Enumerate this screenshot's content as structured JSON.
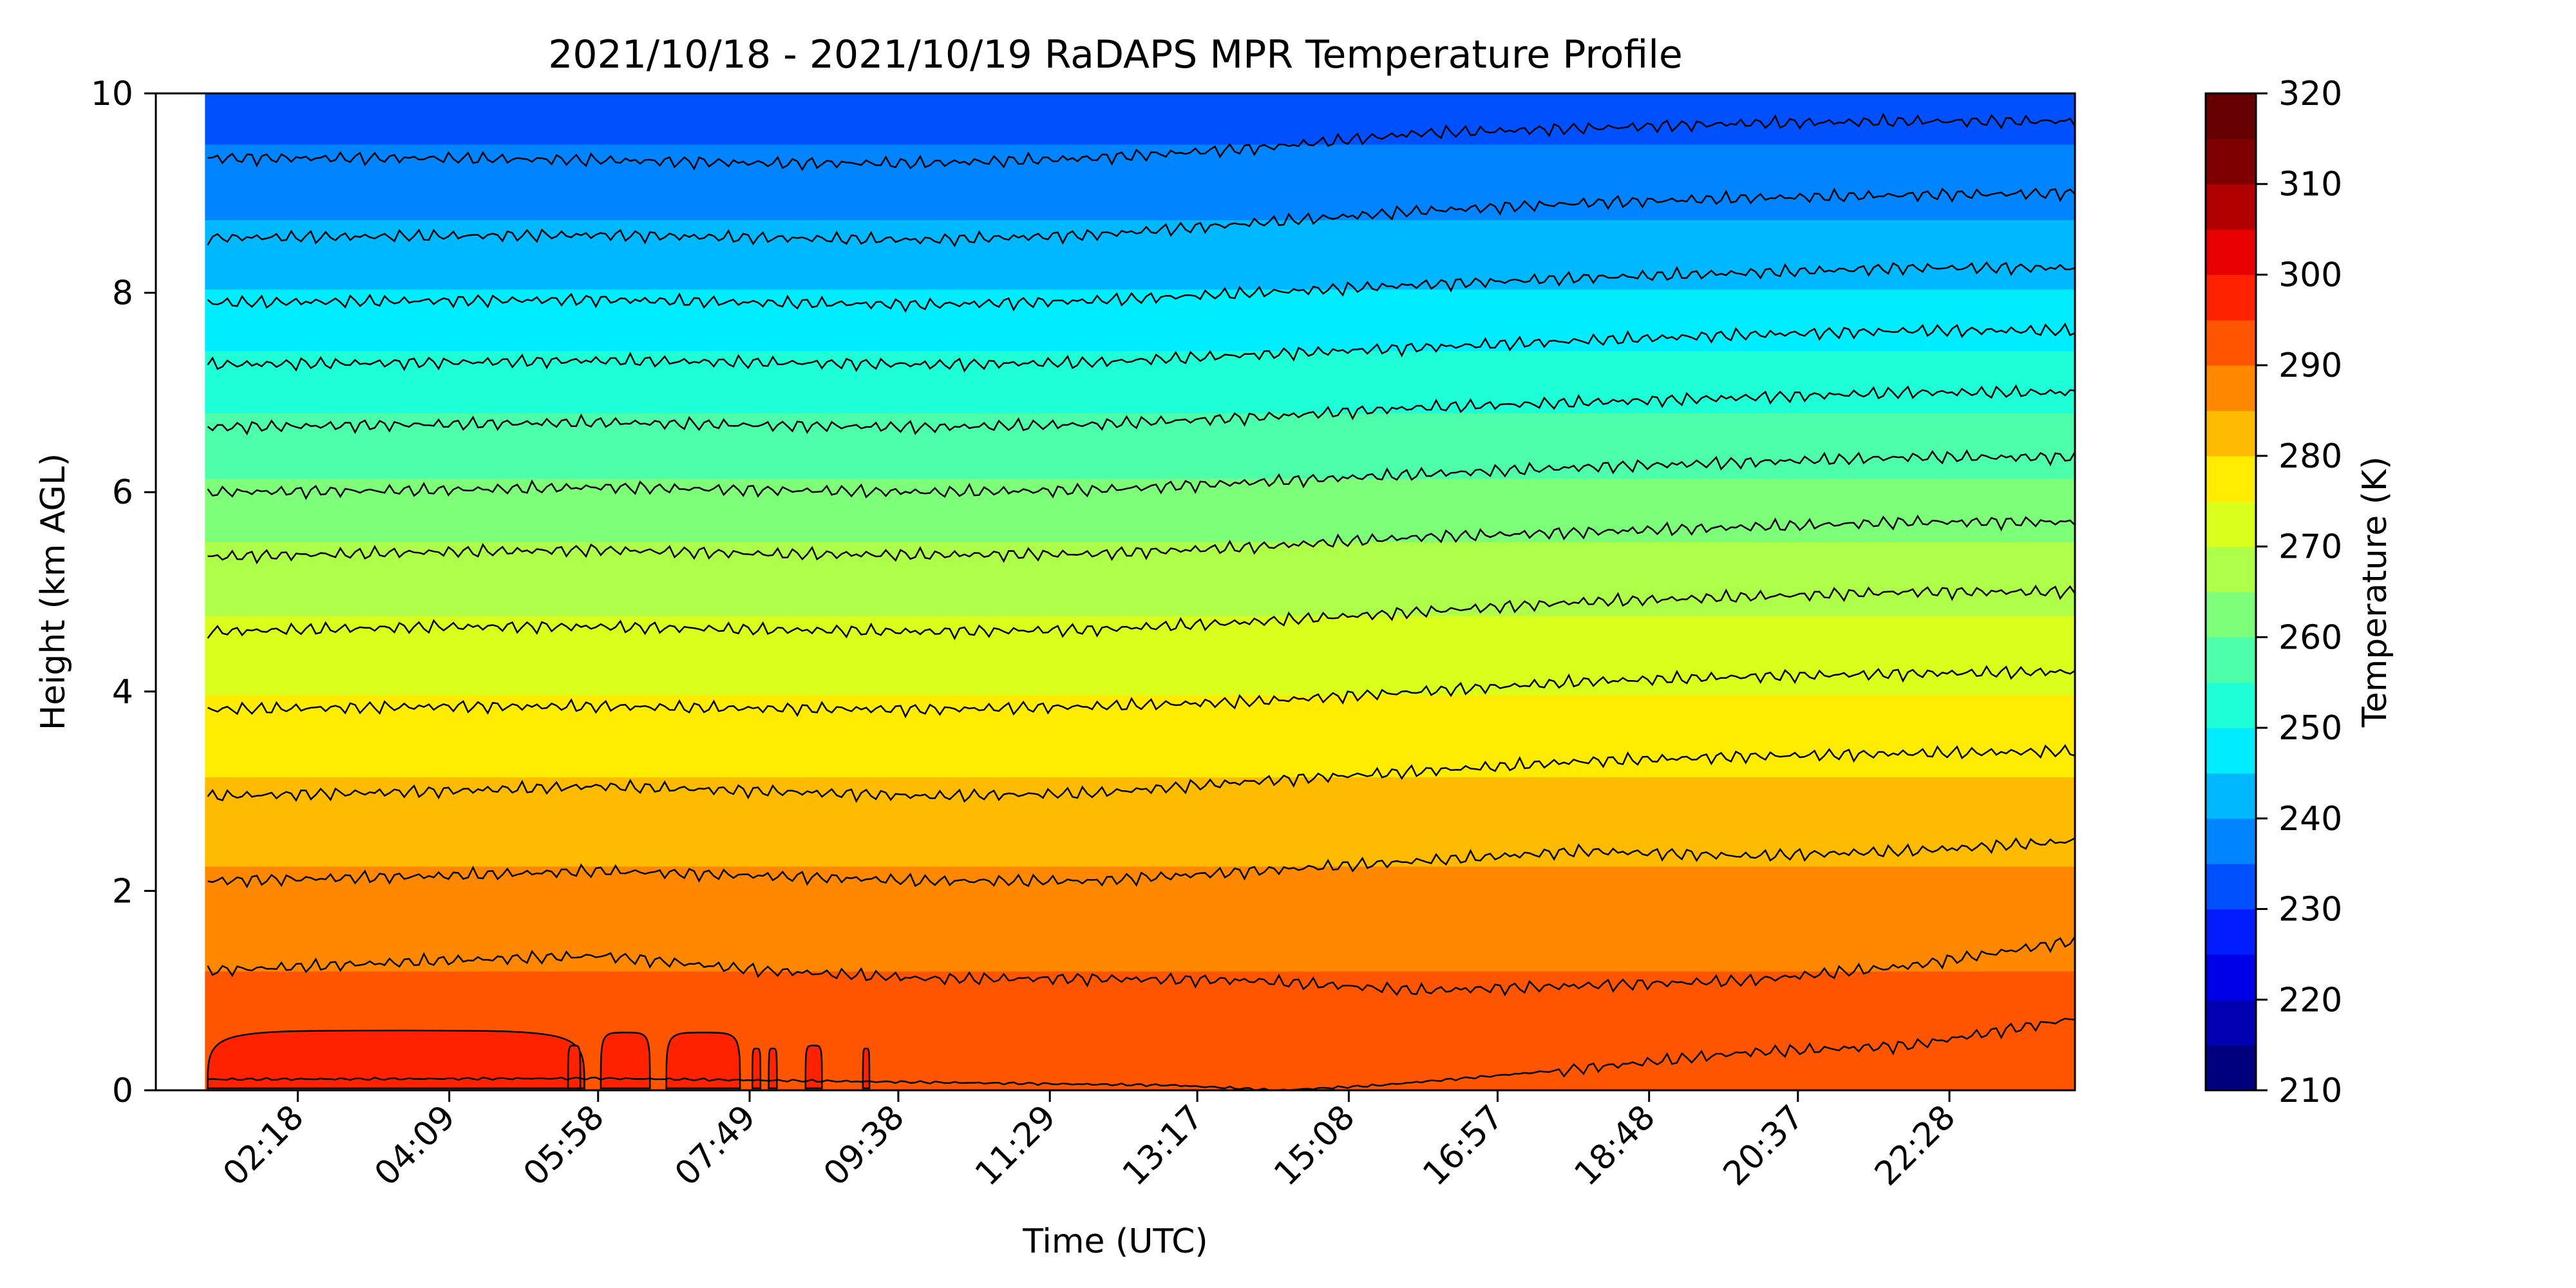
{
  "chart_data": {
    "type": "heatmap",
    "subtype": "filled-contour",
    "title": "2021/10/18 - 2021/10/19 RaDAPS MPR Temperature Profile",
    "xlabel": "Time (UTC)",
    "ylabel": "Height (km AGL)",
    "x_tick_labels": [
      "02:18",
      "04:09",
      "05:58",
      "07:49",
      "09:38",
      "11:29",
      "13:17",
      "15:08",
      "16:57",
      "18:48",
      "20:37",
      "22:28"
    ],
    "x_ticks_hours": [
      2.3,
      4.15,
      5.967,
      7.817,
      9.633,
      11.483,
      13.283,
      15.133,
      16.95,
      18.8,
      20.617,
      22.467
    ],
    "xlim_hours": [
      0.567,
      24.0
    ],
    "data_xlim_hours": [
      1.167,
      24.0
    ],
    "ylim": [
      0,
      10
    ],
    "y_ticks": [
      0,
      2,
      4,
      6,
      8,
      10
    ],
    "colorbar": {
      "label": "Temperature (K)",
      "range": [
        210,
        320
      ],
      "tick_labels": [
        "210",
        "220",
        "230",
        "240",
        "250",
        "260",
        "270",
        "280",
        "290",
        "300",
        "310",
        "320"
      ],
      "levels": [
        210,
        215,
        220,
        225,
        230,
        235,
        240,
        245,
        250,
        255,
        260,
        265,
        270,
        275,
        280,
        285,
        290,
        295,
        300,
        305,
        310,
        315,
        320
      ],
      "colors": [
        "#00007f",
        "#0000b2",
        "#0000e8",
        "#001cff",
        "#0050ff",
        "#0084ff",
        "#00b8ff",
        "#00ecff",
        "#1fffd7",
        "#4dffa9",
        "#7dff7a",
        "#adff4a",
        "#dbff1c",
        "#ffec00",
        "#ffbb00",
        "#ff8800",
        "#ff5500",
        "#ff2200",
        "#e80000",
        "#b20000",
        "#7f0000",
        "#660000"
      ]
    },
    "contour_interval_K": 5,
    "isotherms": [
      {
        "level": 295,
        "heights_km": [
          [
            1.2,
            0.11
          ],
          [
            6.0,
            0.12
          ],
          [
            13.0,
            0.05
          ],
          [
            14.3,
            0.0
          ],
          [
            15.5,
            0.05
          ],
          [
            18.0,
            0.22
          ],
          [
            20.0,
            0.38
          ],
          [
            22.0,
            0.45
          ],
          [
            24.0,
            0.72
          ]
        ]
      },
      {
        "level": 290,
        "heights_km": [
          [
            1.2,
            1.2
          ],
          [
            4.0,
            1.3
          ],
          [
            6.0,
            1.35
          ],
          [
            8.0,
            1.2
          ],
          [
            10.0,
            1.12
          ],
          [
            12.0,
            1.12
          ],
          [
            14.0,
            1.1
          ],
          [
            16.0,
            1.0
          ],
          [
            18.0,
            1.05
          ],
          [
            20.0,
            1.1
          ],
          [
            22.0,
            1.25
          ],
          [
            24.0,
            1.5
          ]
        ]
      },
      {
        "level": 285,
        "heights_km": [
          [
            1.2,
            2.1
          ],
          [
            4.0,
            2.15
          ],
          [
            6.0,
            2.2
          ],
          [
            8.0,
            2.15
          ],
          [
            10.0,
            2.1
          ],
          [
            12.0,
            2.1
          ],
          [
            14.0,
            2.2
          ],
          [
            16.0,
            2.3
          ],
          [
            18.0,
            2.4
          ],
          [
            20.0,
            2.35
          ],
          [
            22.0,
            2.4
          ],
          [
            24.0,
            2.5
          ]
        ]
      },
      {
        "level": 280,
        "heights_km": [
          [
            1.2,
            2.95
          ],
          [
            4.0,
            3.0
          ],
          [
            6.0,
            3.05
          ],
          [
            8.0,
            3.0
          ],
          [
            10.0,
            2.95
          ],
          [
            12.0,
            2.98
          ],
          [
            14.0,
            3.1
          ],
          [
            16.0,
            3.2
          ],
          [
            18.0,
            3.3
          ],
          [
            20.0,
            3.35
          ],
          [
            22.0,
            3.38
          ],
          [
            24.0,
            3.4
          ]
        ]
      },
      {
        "level": 275,
        "heights_km": [
          [
            1.2,
            3.82
          ],
          [
            4.0,
            3.85
          ],
          [
            6.0,
            3.85
          ],
          [
            8.0,
            3.83
          ],
          [
            10.0,
            3.82
          ],
          [
            12.0,
            3.85
          ],
          [
            14.0,
            3.9
          ],
          [
            16.0,
            4.0
          ],
          [
            18.0,
            4.1
          ],
          [
            20.0,
            4.15
          ],
          [
            22.0,
            4.18
          ],
          [
            24.0,
            4.2
          ]
        ]
      },
      {
        "level": 270,
        "heights_km": [
          [
            1.2,
            4.6
          ],
          [
            4.0,
            4.65
          ],
          [
            6.0,
            4.65
          ],
          [
            8.0,
            4.62
          ],
          [
            10.0,
            4.6
          ],
          [
            12.0,
            4.62
          ],
          [
            14.0,
            4.7
          ],
          [
            16.0,
            4.8
          ],
          [
            18.0,
            4.9
          ],
          [
            20.0,
            4.95
          ],
          [
            22.0,
            5.0
          ],
          [
            24.0,
            5.0
          ]
        ]
      },
      {
        "level": 265,
        "heights_km": [
          [
            1.2,
            5.35
          ],
          [
            4.0,
            5.4
          ],
          [
            6.0,
            5.42
          ],
          [
            8.0,
            5.38
          ],
          [
            10.0,
            5.37
          ],
          [
            12.0,
            5.38
          ],
          [
            14.0,
            5.45
          ],
          [
            16.0,
            5.55
          ],
          [
            18.0,
            5.6
          ],
          [
            20.0,
            5.65
          ],
          [
            22.0,
            5.7
          ],
          [
            24.0,
            5.7
          ]
        ]
      },
      {
        "level": 260,
        "heights_km": [
          [
            1.2,
            6.0
          ],
          [
            4.0,
            6.02
          ],
          [
            6.0,
            6.05
          ],
          [
            8.0,
            6.02
          ],
          [
            10.0,
            6.0
          ],
          [
            12.0,
            6.02
          ],
          [
            14.0,
            6.1
          ],
          [
            16.0,
            6.18
          ],
          [
            18.0,
            6.25
          ],
          [
            20.0,
            6.3
          ],
          [
            22.0,
            6.35
          ],
          [
            24.0,
            6.35
          ]
        ]
      },
      {
        "level": 255,
        "heights_km": [
          [
            1.2,
            6.65
          ],
          [
            4.0,
            6.68
          ],
          [
            6.0,
            6.7
          ],
          [
            8.0,
            6.67
          ],
          [
            10.0,
            6.65
          ],
          [
            12.0,
            6.68
          ],
          [
            14.0,
            6.75
          ],
          [
            16.0,
            6.85
          ],
          [
            18.0,
            6.9
          ],
          [
            20.0,
            6.95
          ],
          [
            22.0,
            7.0
          ],
          [
            24.0,
            7.0
          ]
        ]
      },
      {
        "level": 250,
        "heights_km": [
          [
            1.2,
            7.28
          ],
          [
            4.0,
            7.3
          ],
          [
            6.0,
            7.32
          ],
          [
            8.0,
            7.3
          ],
          [
            10.0,
            7.28
          ],
          [
            12.0,
            7.3
          ],
          [
            14.0,
            7.38
          ],
          [
            16.0,
            7.45
          ],
          [
            18.0,
            7.52
          ],
          [
            20.0,
            7.58
          ],
          [
            22.0,
            7.62
          ],
          [
            24.0,
            7.62
          ]
        ]
      },
      {
        "level": 245,
        "heights_km": [
          [
            1.2,
            7.9
          ],
          [
            4.0,
            7.92
          ],
          [
            6.0,
            7.93
          ],
          [
            8.0,
            7.9
          ],
          [
            10.0,
            7.88
          ],
          [
            12.0,
            7.92
          ],
          [
            14.0,
            8.0
          ],
          [
            16.0,
            8.08
          ],
          [
            18.0,
            8.15
          ],
          [
            20.0,
            8.2
          ],
          [
            22.0,
            8.25
          ],
          [
            24.0,
            8.25
          ]
        ]
      },
      {
        "level": 240,
        "heights_km": [
          [
            1.2,
            8.55
          ],
          [
            4.0,
            8.57
          ],
          [
            6.0,
            8.58
          ],
          [
            8.0,
            8.55
          ],
          [
            10.0,
            8.53
          ],
          [
            12.0,
            8.58
          ],
          [
            14.0,
            8.7
          ],
          [
            16.0,
            8.82
          ],
          [
            18.0,
            8.9
          ],
          [
            20.0,
            8.95
          ],
          [
            22.0,
            8.98
          ],
          [
            24.0,
            9.0
          ]
        ]
      },
      {
        "level": 235,
        "heights_km": [
          [
            1.2,
            9.35
          ],
          [
            4.0,
            9.35
          ],
          [
            6.0,
            9.33
          ],
          [
            8.0,
            9.3
          ],
          [
            10.0,
            9.3
          ],
          [
            12.0,
            9.35
          ],
          [
            14.0,
            9.45
          ],
          [
            16.0,
            9.6
          ],
          [
            18.0,
            9.65
          ],
          [
            20.0,
            9.7
          ],
          [
            22.0,
            9.72
          ],
          [
            24.0,
            9.72
          ]
        ]
      }
    ],
    "warm_pockets_295K": [
      {
        "t_start": 1.2,
        "t_end": 5.8,
        "top_km": 0.6
      },
      {
        "t_start": 6.0,
        "t_end": 6.6,
        "top_km": 0.58
      },
      {
        "t_start": 6.8,
        "t_end": 7.7,
        "top_km": 0.58
      },
      {
        "t_start": 5.6,
        "t_end": 5.75,
        "top_km": 0.45
      },
      {
        "t_start": 7.85,
        "t_end": 7.95,
        "top_km": 0.42
      },
      {
        "t_start": 8.05,
        "t_end": 8.15,
        "top_km": 0.42
      },
      {
        "t_start": 8.5,
        "t_end": 8.7,
        "top_km": 0.45
      },
      {
        "t_start": 9.2,
        "t_end": 9.28,
        "top_km": 0.42
      }
    ]
  }
}
